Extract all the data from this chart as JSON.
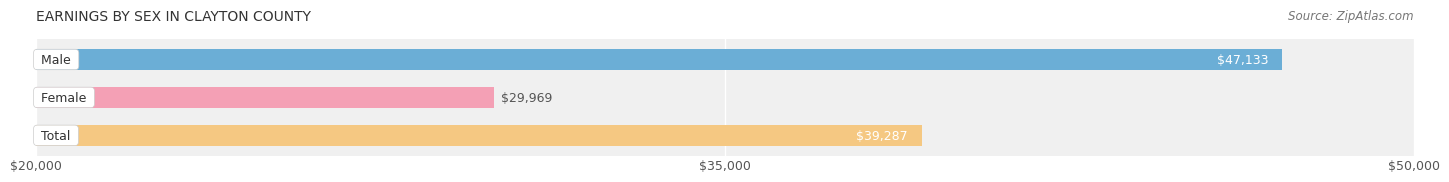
{
  "title": "EARNINGS BY SEX IN CLAYTON COUNTY",
  "source": "Source: ZipAtlas.com",
  "categories": [
    "Male",
    "Female",
    "Total"
  ],
  "values": [
    47133,
    29969,
    39287
  ],
  "x_min": 20000,
  "x_max": 50000,
  "x_ticks": [
    20000,
    35000,
    50000
  ],
  "x_tick_labels": [
    "$20,000",
    "$35,000",
    "$50,000"
  ],
  "bar_colors": [
    "#6baed6",
    "#f4a0b5",
    "#f5c882"
  ],
  "bar_label_colors": [
    "#ffffff",
    "#555555",
    "#ffffff"
  ],
  "bar_label_inside": [
    true,
    false,
    true
  ],
  "value_labels": [
    "$47,133",
    "$29,969",
    "$39,287"
  ],
  "label_bg_color": "#ffffff",
  "label_text_color": "#555555",
  "bar_height": 0.55,
  "background_color": "#ffffff",
  "title_fontsize": 10,
  "source_fontsize": 8.5,
  "tick_fontsize": 9,
  "label_fontsize": 9,
  "category_fontsize": 9
}
